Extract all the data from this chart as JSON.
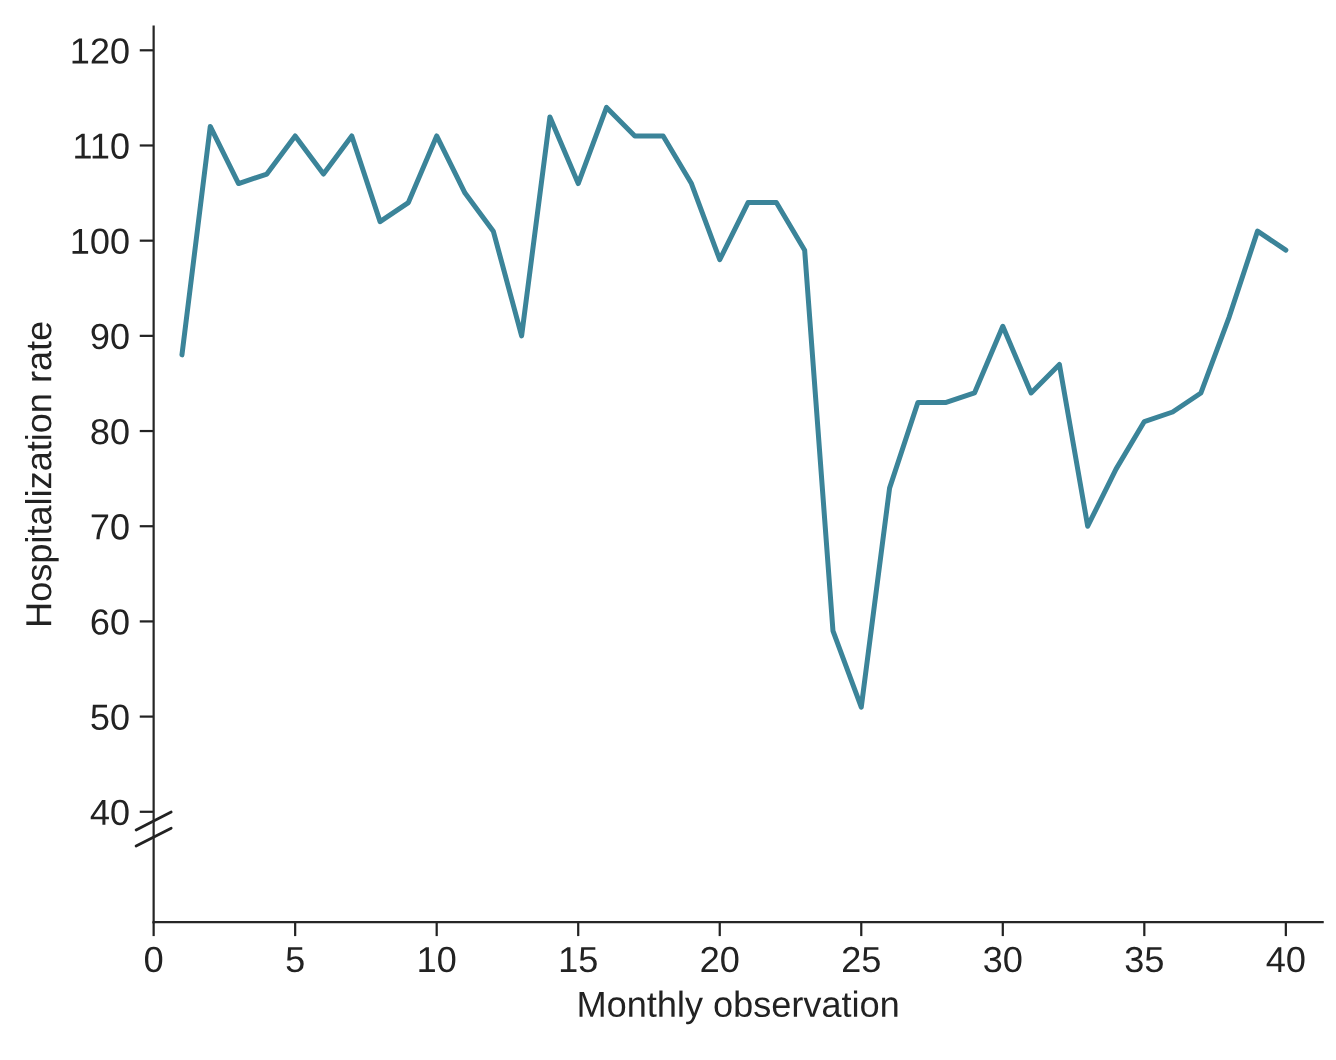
{
  "chart_data": {
    "type": "line",
    "xlabel": "Monthly observation",
    "ylabel": "Hospitalization rate",
    "x": [
      1,
      2,
      3,
      4,
      5,
      6,
      7,
      8,
      9,
      10,
      11,
      12,
      13,
      14,
      15,
      16,
      17,
      18,
      19,
      20,
      21,
      22,
      23,
      24,
      25,
      26,
      27,
      28,
      29,
      30,
      31,
      32,
      33,
      34,
      35,
      36,
      37,
      38,
      39,
      40
    ],
    "series": [
      {
        "color": "#3b8499",
        "values": [
          88,
          112,
          106,
          107,
          111,
          107,
          111,
          102,
          104,
          111,
          105,
          101,
          90,
          113,
          106,
          114,
          111,
          111,
          106,
          98,
          104,
          104,
          99,
          59,
          51,
          74,
          83,
          83,
          84,
          91,
          84,
          87,
          70,
          76,
          81,
          82,
          84,
          92,
          101,
          99
        ]
      }
    ],
    "xlim": [
      0,
      41.3
    ],
    "xticks": [
      0,
      5,
      10,
      15,
      20,
      25,
      30,
      35,
      40
    ],
    "ylim": [
      28.4,
      122.5
    ],
    "yticks": [
      40,
      50,
      60,
      70,
      80,
      90,
      100,
      110,
      120
    ],
    "grid": false,
    "legend": false,
    "marker": "none",
    "line_style": "solid"
  }
}
